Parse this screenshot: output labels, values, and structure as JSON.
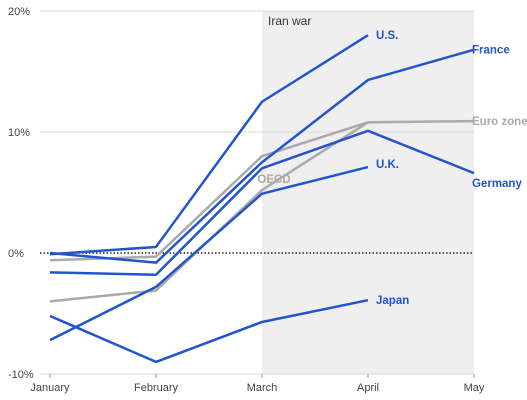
{
  "chart_data": {
    "type": "line",
    "categories": [
      "January",
      "February",
      "March",
      "April",
      "May"
    ],
    "annotation": "Iran war",
    "ylim": [
      -10,
      20
    ],
    "yticks": [
      {
        "value": -10,
        "label": "-10%"
      },
      {
        "value": 0,
        "label": "0%"
      },
      {
        "value": 10,
        "label": "10%"
      },
      {
        "value": 20,
        "label": "20%"
      }
    ],
    "grid": true,
    "series": [
      {
        "name": "OECD",
        "color": "#aaaaaa",
        "values": [
          -4,
          -3.1,
          5.2,
          10.8,
          null
        ]
      },
      {
        "name": "Euro zone",
        "color": "#aaaaaa",
        "values": [
          -0.6,
          -0.3,
          8,
          10.8,
          10.9
        ]
      },
      {
        "name": "U.S.",
        "color": "#2255cc",
        "values": [
          -0.1,
          0.5,
          12.5,
          18,
          null
        ]
      },
      {
        "name": "France",
        "color": "#2255cc",
        "values": [
          0,
          -0.8,
          7.5,
          14.3,
          16.8
        ]
      },
      {
        "name": "Germany",
        "color": "#2255cc",
        "values": [
          -1.6,
          -1.8,
          7,
          10.1,
          6.6
        ]
      },
      {
        "name": "U.K.",
        "color": "#2255cc",
        "values": [
          -7.2,
          -2.8,
          4.9,
          7.1,
          null
        ]
      },
      {
        "name": "Japan",
        "color": "#2255cc",
        "values": [
          -5.2,
          -9,
          -5.7,
          -3.9,
          null
        ]
      }
    ]
  }
}
